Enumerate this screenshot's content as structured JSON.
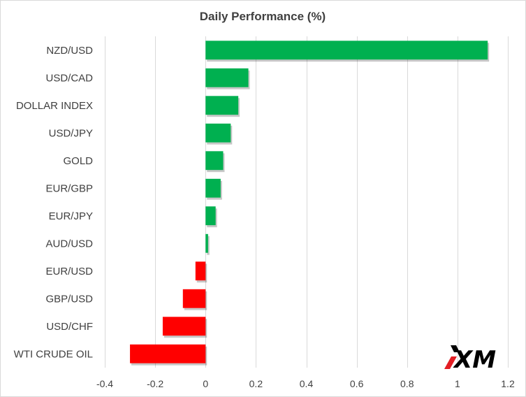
{
  "chart_data": {
    "type": "bar",
    "orientation": "horizontal",
    "title": "Daily Performance  (%)",
    "categories": [
      "NZD/USD",
      "USD/CAD",
      "DOLLAR INDEX",
      "USD/JPY",
      "GOLD",
      "EUR/GBP",
      "EUR/JPY",
      "AUD/USD",
      "EUR/USD",
      "GBP/USD",
      "USD/CHF",
      "WTI CRUDE OIL"
    ],
    "values": [
      1.12,
      0.17,
      0.13,
      0.1,
      0.07,
      0.06,
      0.04,
      0.01,
      -0.04,
      -0.09,
      -0.17,
      -0.3
    ],
    "xlim": [
      -0.4,
      1.2
    ],
    "xticks": [
      -0.4,
      -0.2,
      0,
      0.2,
      0.4,
      0.6,
      0.8,
      1,
      1.2
    ],
    "xtick_labels": [
      "-0.4",
      "-0.2",
      "0",
      "0.2",
      "0.4",
      "0.6",
      "0.8",
      "1",
      "1.2"
    ],
    "grid": true,
    "legend": "none",
    "colors": {
      "positive": "#00b050",
      "negative": "#ff0000",
      "grid": "#d9d9d9",
      "text": "#404040"
    }
  },
  "logo": {
    "text": "XM",
    "mark_color": "#e31e24"
  }
}
